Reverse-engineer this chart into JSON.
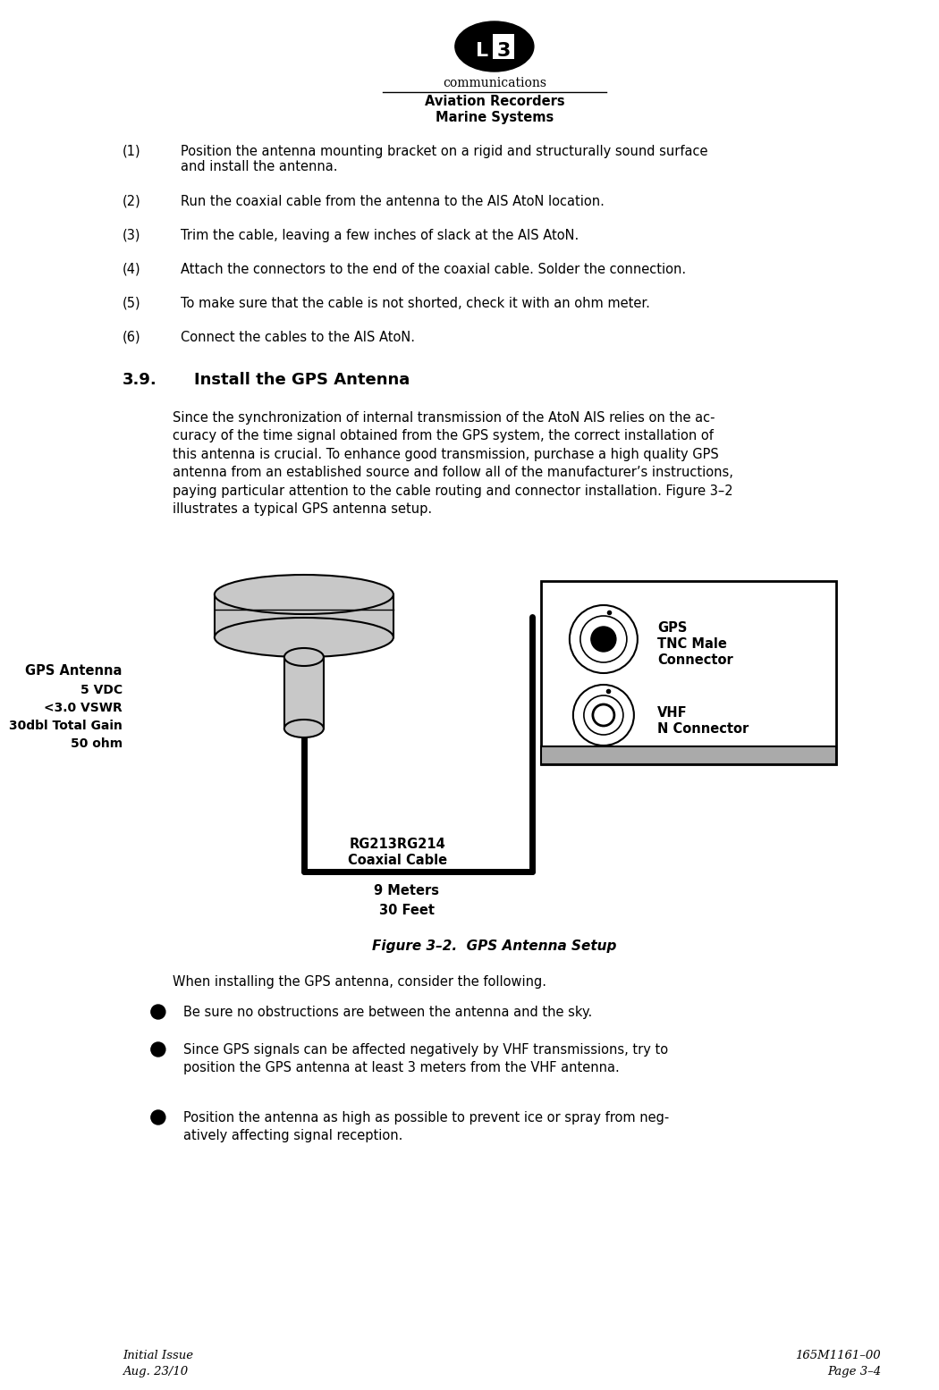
{
  "page_width": 9.76,
  "page_height": 15.35,
  "bg_color": "#ffffff",
  "logo_text": "communications",
  "header_line1": "Aviation Recorders",
  "header_line2": "Marine Systems",
  "item_texts": [
    [
      "(1)",
      "Position the antenna mounting bracket on a rigid and structurally sound surface\nand install the antenna."
    ],
    [
      "(2)",
      "Run the coaxial cable from the antenna to the AIS AtoN location."
    ],
    [
      "(3)",
      "Trim the cable, leaving a few inches of slack at the AIS AtoN."
    ],
    [
      "(4)",
      "Attach the connectors to the end of the coaxial cable. Solder the connection."
    ],
    [
      "(5)",
      "To make sure that the cable is not shorted, check it with an ohm meter."
    ],
    [
      "(6)",
      "Connect the cables to the AIS AtoN."
    ]
  ],
  "section_num": "3.9.",
  "section_title": "Install the GPS Antenna",
  "section_body": "Since the synchronization of internal transmission of the AtoN AIS relies on the ac-\ncuracy of the time signal obtained from the GPS system, the correct installation of\nthis antenna is crucial. To enhance good transmission, purchase a high quality GPS\nantenna from an established source and follow all of the manufacturer’s instructions,\npaying particular attention to the cable routing and connector installation. Figure 3–2\nillustrates a typical GPS antenna setup.",
  "figure_caption": "Figure 3–2.  GPS Antenna Setup",
  "antenna_label_line1": "GPS Antenna",
  "antenna_label_line2": "5 VDC",
  "antenna_label_line3": "<3.0 VSWR",
  "antenna_label_line4": "30dbl Total Gain",
  "antenna_label_line5": "50 ohm",
  "cable_label_line1": "RG213RG214",
  "cable_label_line2": "Coaxial Cable",
  "distance_line1": "9 Meters",
  "distance_line2": "30 Feet",
  "gps_label1": "GPS",
  "gps_label2": "TNC Male",
  "gps_label3": "Connector",
  "vhf_label1": "VHF",
  "vhf_label2": "N Connector",
  "consider_text": "When installing the GPS antenna, consider the following.",
  "bullet_items": [
    "Be sure no obstructions are between the antenna and the sky.",
    "Since GPS signals can be affected negatively by VHF transmissions, try to\nposition the GPS antenna at least 3 meters from the VHF antenna.",
    "Position the antenna as high as possible to prevent ice or spray from neg-\natively affecting signal reception."
  ],
  "footer_left_line1": "Initial Issue",
  "footer_left_line2": "Aug. 23/10",
  "footer_right_line1": "165M1161–00",
  "footer_right_line2": "Page 3–4"
}
